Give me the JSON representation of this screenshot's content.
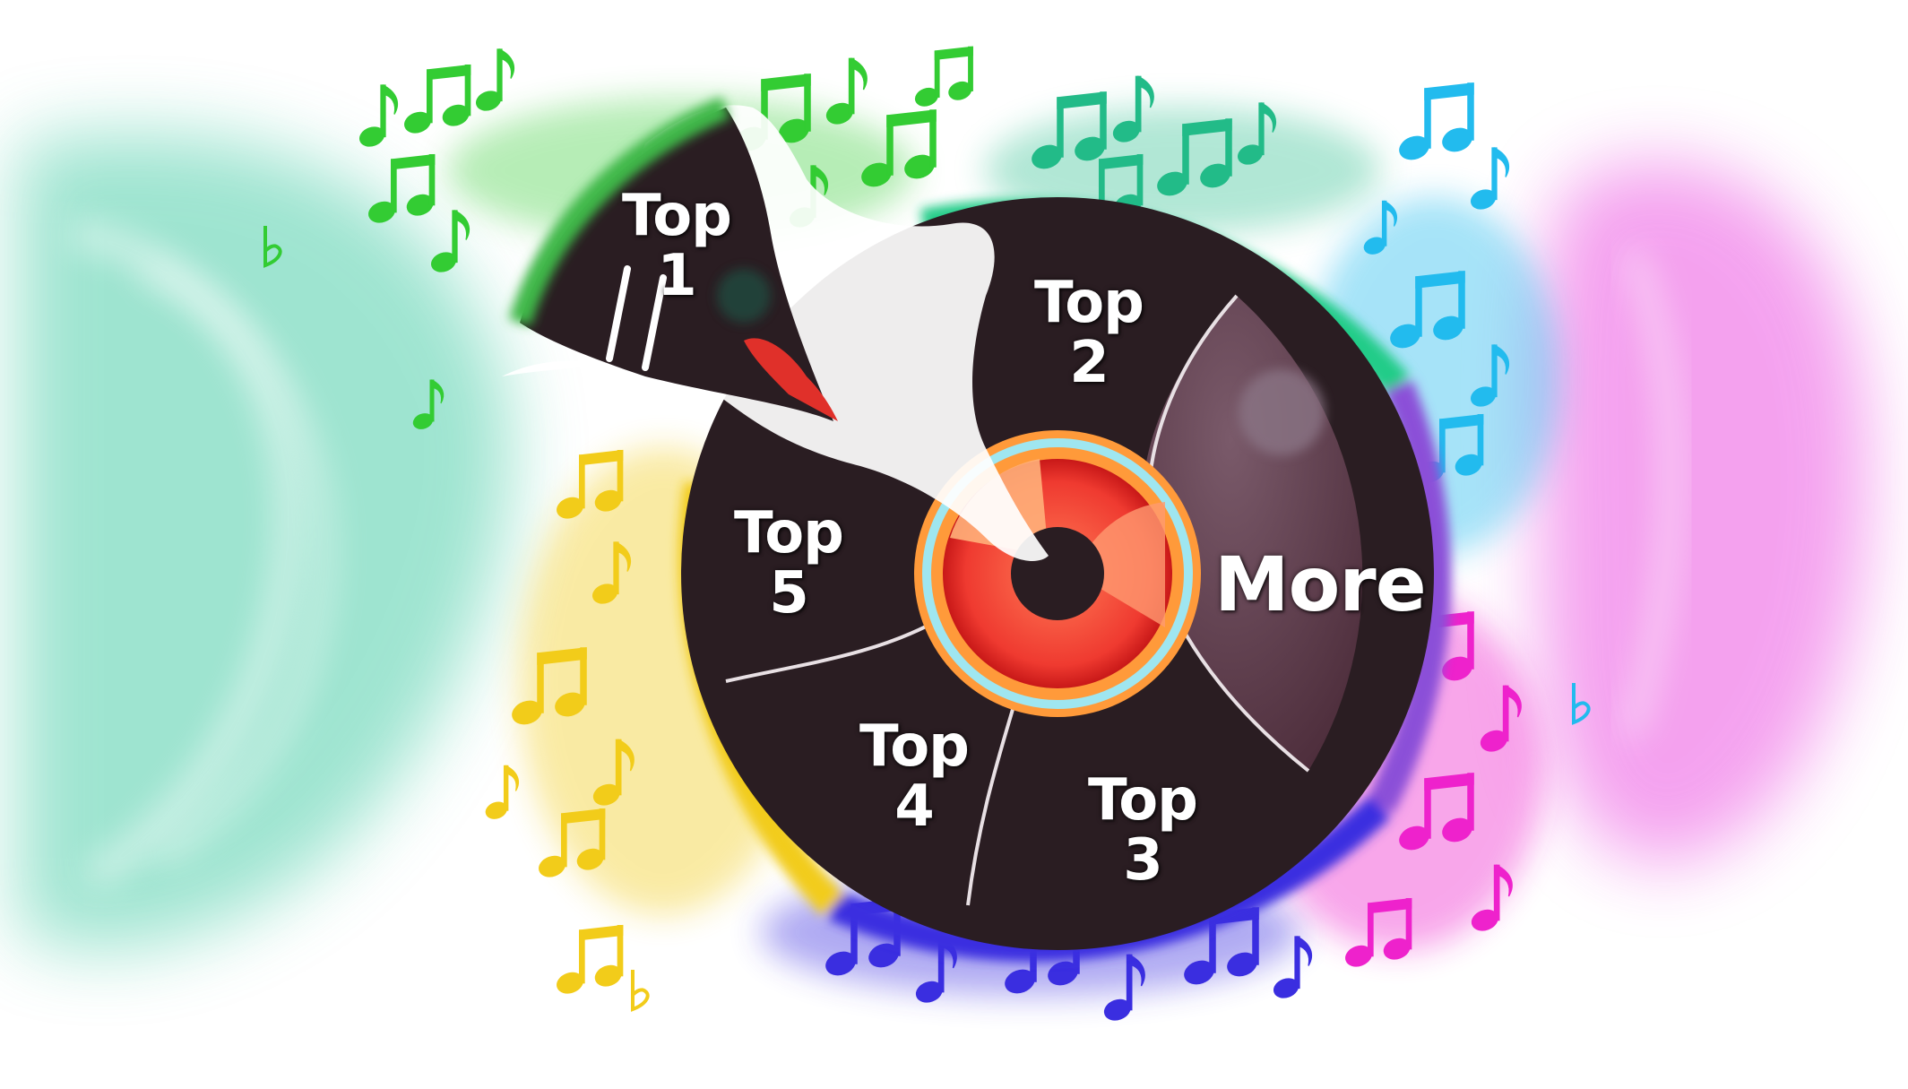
{
  "segments": [
    {
      "id": "top1",
      "line1": "Top",
      "line2": "1"
    },
    {
      "id": "top2",
      "line1": "Top",
      "line2": "2"
    },
    {
      "id": "top3",
      "line1": "Top",
      "line2": "3"
    },
    {
      "id": "top4",
      "line1": "Top",
      "line2": "4"
    },
    {
      "id": "top5",
      "line1": "Top",
      "line2": "5"
    },
    {
      "id": "more",
      "line1": "More"
    }
  ],
  "colors": {
    "record": "#2a1d22",
    "more_segment": "#5e3a48",
    "center_label": "#ef4a40",
    "green_notes": "#33cc33",
    "teal_notes": "#22bb88",
    "cyan_notes": "#22bbee",
    "yellow_notes": "#f2cc1a",
    "blue_notes": "#3a2ee0",
    "magenta_notes": "#ee22cc",
    "glow_left": "#4fcfaa",
    "glow_right": "#f07ae8"
  },
  "icons": [
    "music-note-icon",
    "treble-clef-icon",
    "flat-sign-icon"
  ]
}
